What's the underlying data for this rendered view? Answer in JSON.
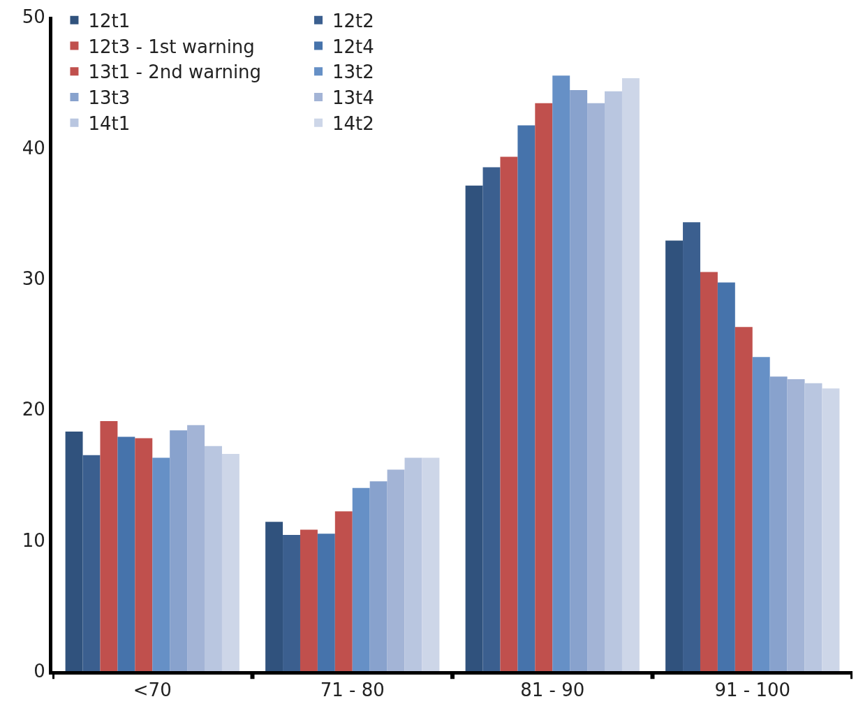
{
  "chart_data": {
    "type": "bar",
    "categories": [
      "<70",
      "71 - 80",
      "81 - 90",
      "91 - 100"
    ],
    "series": [
      {
        "name": "12t1",
        "color": "#30527d",
        "values": [
          18.3,
          11.4,
          37.1,
          32.9
        ]
      },
      {
        "name": "12t2",
        "color": "#3b5f8f",
        "values": [
          16.5,
          10.4,
          38.5,
          34.3
        ]
      },
      {
        "name": "12t3 - 1st warning",
        "color": "#c0504d",
        "values": [
          19.1,
          10.8,
          39.3,
          30.5
        ]
      },
      {
        "name": "12t4",
        "color": "#4673ab",
        "values": [
          17.9,
          10.5,
          41.7,
          29.7
        ]
      },
      {
        "name": "13t1 - 2nd warning",
        "color": "#c0504d",
        "values": [
          17.8,
          12.2,
          43.4,
          26.3
        ]
      },
      {
        "name": "13t2",
        "color": "#6690c6",
        "values": [
          16.3,
          14.0,
          45.5,
          24.0
        ]
      },
      {
        "name": "13t3",
        "color": "#88a2cd",
        "values": [
          18.4,
          14.5,
          44.4,
          22.5
        ]
      },
      {
        "name": "13t4",
        "color": "#a3b4d6",
        "values": [
          18.8,
          15.4,
          43.4,
          22.3
        ]
      },
      {
        "name": "14t1",
        "color": "#b9c6e0",
        "values": [
          17.2,
          16.3,
          44.3,
          22.0
        ]
      },
      {
        "name": "14t2",
        "color": "#cdd6e8",
        "values": [
          16.6,
          16.3,
          45.3,
          21.6
        ]
      }
    ],
    "ylim": [
      0,
      50
    ],
    "yticks": [
      0,
      10,
      20,
      30,
      40,
      50
    ],
    "legend": "top left"
  }
}
